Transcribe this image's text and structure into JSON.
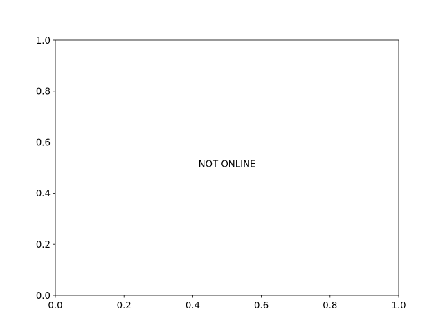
{
  "chart_data": {
    "type": "scatter",
    "title": "",
    "xlabel": "",
    "ylabel": "",
    "xlim": [
      0.0,
      1.0
    ],
    "ylim": [
      0.0,
      1.0
    ],
    "x_ticks": [
      "0.0",
      "0.2",
      "0.4",
      "0.6",
      "0.8",
      "1.0"
    ],
    "y_ticks": [
      "0.0",
      "0.2",
      "0.4",
      "0.6",
      "0.8",
      "1.0"
    ],
    "series": [],
    "grid": false,
    "annotations": [
      {
        "text": "NOT ONLINE",
        "x": 0.5,
        "y": 0.5
      }
    ]
  }
}
